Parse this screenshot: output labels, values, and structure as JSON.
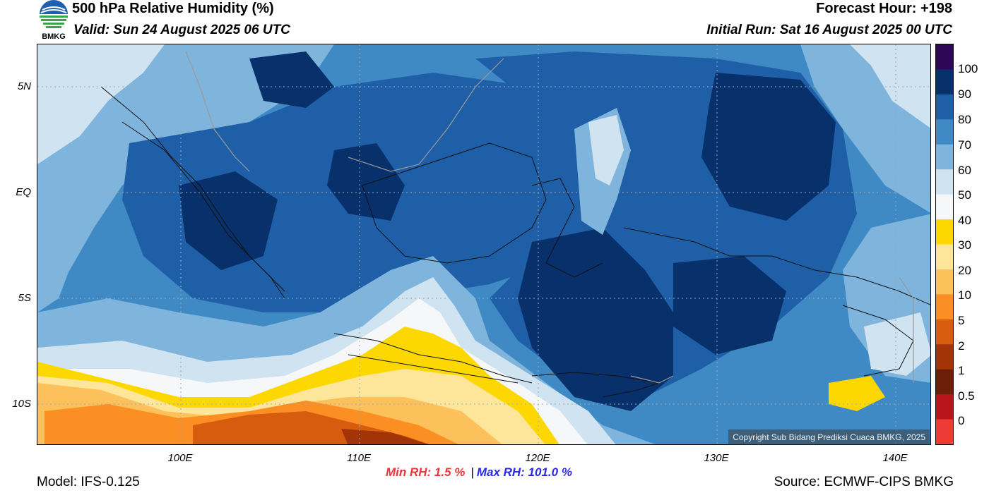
{
  "header": {
    "title": "500 hPa Relative Humidity (%)",
    "valid": "Valid: Sun 24 August 2025 06 UTC",
    "forecast_hour": "Forecast Hour: +198",
    "initial_run": "Initial Run: Sat 16 August 2025 00 UTC",
    "logo_text": "BMKG"
  },
  "map": {
    "lat_labels": [
      "5N",
      "EQ",
      "5S",
      "10S"
    ],
    "lon_labels": [
      "100E",
      "110E",
      "120E",
      "130E",
      "140E"
    ],
    "lat_values": [
      5,
      0,
      -5,
      -10
    ],
    "lon_values": [
      100,
      110,
      120,
      130,
      140
    ],
    "extent": {
      "lon_min": 92,
      "lon_max": 142,
      "lat_min": -12,
      "lat_max": 7
    },
    "copyright": "Copyright Sub Bidang Prediksi Cuaca BMKG, 2025"
  },
  "colorbar": {
    "labels": [
      "100",
      "90",
      "80",
      "70",
      "60",
      "50",
      "40",
      "30",
      "20",
      "10",
      "5",
      "2",
      "1",
      "0.5",
      "0"
    ],
    "colors": [
      "#2e0854",
      "#08306b",
      "#1f5fa8",
      "#3f8ac4",
      "#7fb5dc",
      "#cfe3f0",
      "#f5f7f9",
      "#fcd800",
      "#fde69a",
      "#fdc15c",
      "#fb8f23",
      "#d85c0e",
      "#a33408",
      "#6b1f08",
      "#b9151d",
      "#ee3b36"
    ]
  },
  "footer": {
    "min_rh": "Min RH:   1.5 %",
    "separator": "|",
    "max_rh": "Max RH: 101.0 %",
    "model": "Model: IFS-0.125",
    "source": "Source: ECMWF-CIPS BMKG"
  }
}
